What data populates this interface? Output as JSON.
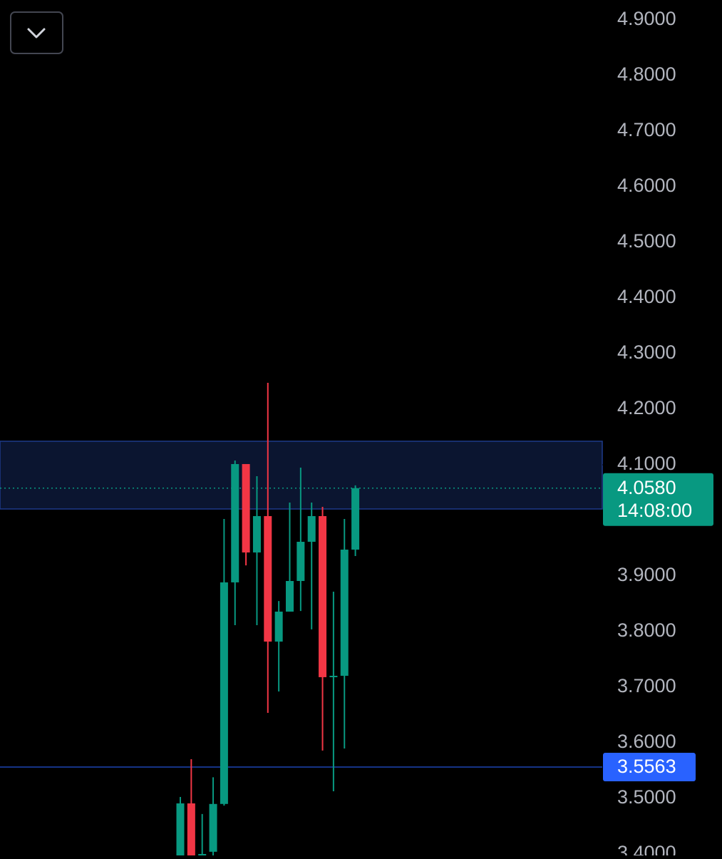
{
  "chart_data": {
    "type": "candlestick",
    "up_color": "#089981",
    "down_color": "#f23645",
    "open": [
      3.38,
      3.491,
      3.39,
      3.404,
      3.49,
      3.8885,
      4.1013,
      3.9423,
      4.0077,
      3.782,
      3.8359,
      3.891,
      3.9615,
      4.0077,
      3.718,
      3.7205,
      3.9474
    ],
    "high": [
      3.5026,
      3.5705,
      3.472,
      3.538,
      4.0026,
      4.1077,
      4.1013,
      4.0795,
      4.2474,
      3.855,
      4.032,
      4.0949,
      4.032,
      4.0244,
      3.8718,
      4.0026,
      4.063
    ],
    "low": [
      3.37,
      3.36,
      3.38,
      3.395,
      3.487,
      3.8115,
      3.919,
      3.8115,
      3.6538,
      3.6923,
      3.8359,
      3.837,
      3.804,
      3.586,
      3.5128,
      3.5897,
      3.9359
    ],
    "close": [
      3.491,
      3.38,
      3.4,
      3.49,
      3.8885,
      4.1013,
      3.9423,
      4.0077,
      3.782,
      3.8359,
      3.891,
      3.9615,
      4.0077,
      3.718,
      3.7205,
      3.9474,
      4.058
    ],
    "ylim": [
      3.3974,
      4.9359
    ],
    "yticks": [
      {
        "value": 4.9,
        "label": "4.9000"
      },
      {
        "value": 4.8,
        "label": "4.8000"
      },
      {
        "value": 4.7,
        "label": "4.7000"
      },
      {
        "value": 4.6,
        "label": "4.6000"
      },
      {
        "value": 4.5,
        "label": "4.5000"
      },
      {
        "value": 4.4,
        "label": "4.4000"
      },
      {
        "value": 4.3,
        "label": "4.3000"
      },
      {
        "value": 4.2,
        "label": "4.2000"
      },
      {
        "value": 4.1,
        "label": "4.1000"
      },
      {
        "value": 4.0,
        "label": "4.0000"
      },
      {
        "value": 3.9,
        "label": "3.9000"
      },
      {
        "value": 3.8,
        "label": "3.8000"
      },
      {
        "value": 3.7,
        "label": "3.7000"
      },
      {
        "value": 3.6,
        "label": "3.6000"
      },
      {
        "value": 3.5,
        "label": "3.5000"
      },
      {
        "value": 3.4,
        "label": "3.4000"
      }
    ],
    "zone": {
      "low": 4.0205,
      "high": 4.1423,
      "color": "#0b1530",
      "border": "#1e3a8a"
    },
    "level_line": {
      "value": 3.5563,
      "label": "3.5563",
      "color": "#2962ff"
    },
    "last_price": {
      "value": 4.058,
      "label": "4.0580",
      "countdown": "14:08:00",
      "color": "#089981"
    }
  }
}
